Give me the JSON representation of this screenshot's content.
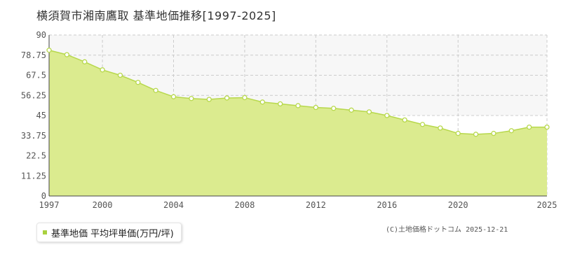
{
  "header": {
    "title": "横須賀市湘南鷹取 基準地価推移[1997-2025]"
  },
  "legend": {
    "label": "基準地価 平均坪単価(万円/坪)"
  },
  "credit": {
    "text": "(C)土地価格ドットコム 2025-12-21"
  },
  "colors": {
    "fill": "#dbeb8f",
    "line": "#b7d84b",
    "point_fill": "#ffffff",
    "point_stroke": "#b7d84b",
    "grid": "#cccccc",
    "band": "#f7f7f7"
  },
  "chart_data": {
    "type": "area",
    "x": [
      1997,
      1998,
      1999,
      2000,
      2001,
      2002,
      2003,
      2004,
      2005,
      2006,
      2007,
      2008,
      2009,
      2010,
      2011,
      2012,
      2013,
      2014,
      2015,
      2016,
      2017,
      2018,
      2019,
      2020,
      2021,
      2022,
      2023,
      2024,
      2025
    ],
    "series": [
      {
        "name": "基準地価 平均坪単価(万円/坪)",
        "values": [
          81.5,
          79.0,
          75.0,
          70.5,
          67.5,
          63.5,
          59.0,
          55.5,
          54.5,
          54.0,
          54.8,
          55.0,
          52.5,
          51.5,
          50.5,
          49.5,
          49.0,
          48.0,
          47.0,
          45.0,
          42.5,
          40.0,
          38.0,
          35.0,
          34.5,
          35.0,
          36.5,
          38.5,
          38.5
        ]
      }
    ],
    "xlim": [
      1997,
      2025
    ],
    "ylim": [
      0,
      90
    ],
    "xticks": [
      1997,
      2000,
      2004,
      2008,
      2012,
      2016,
      2020,
      2025
    ],
    "yticks": [
      "0",
      "11.25",
      "22.5",
      "33.75",
      "45",
      "56.25",
      "67.5",
      "78.75",
      "90"
    ],
    "grid": true,
    "legend_position": "bottom-left"
  }
}
